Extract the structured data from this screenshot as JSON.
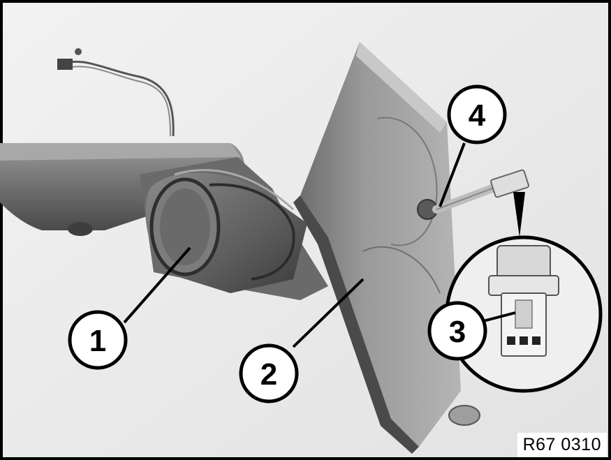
{
  "callouts": [
    {
      "number": "1",
      "part": "arm-pivot-housing"
    },
    {
      "number": "2",
      "part": "mirror-glass-plate"
    },
    {
      "number": "3",
      "part": "connector-plug"
    },
    {
      "number": "4",
      "part": "wire-connector"
    }
  ],
  "figure_code": "R67 0310",
  "colors": {
    "border": "#000000",
    "background": "#ffffff",
    "arm": "#7a7a7a",
    "plate": "#8f8f8f"
  }
}
